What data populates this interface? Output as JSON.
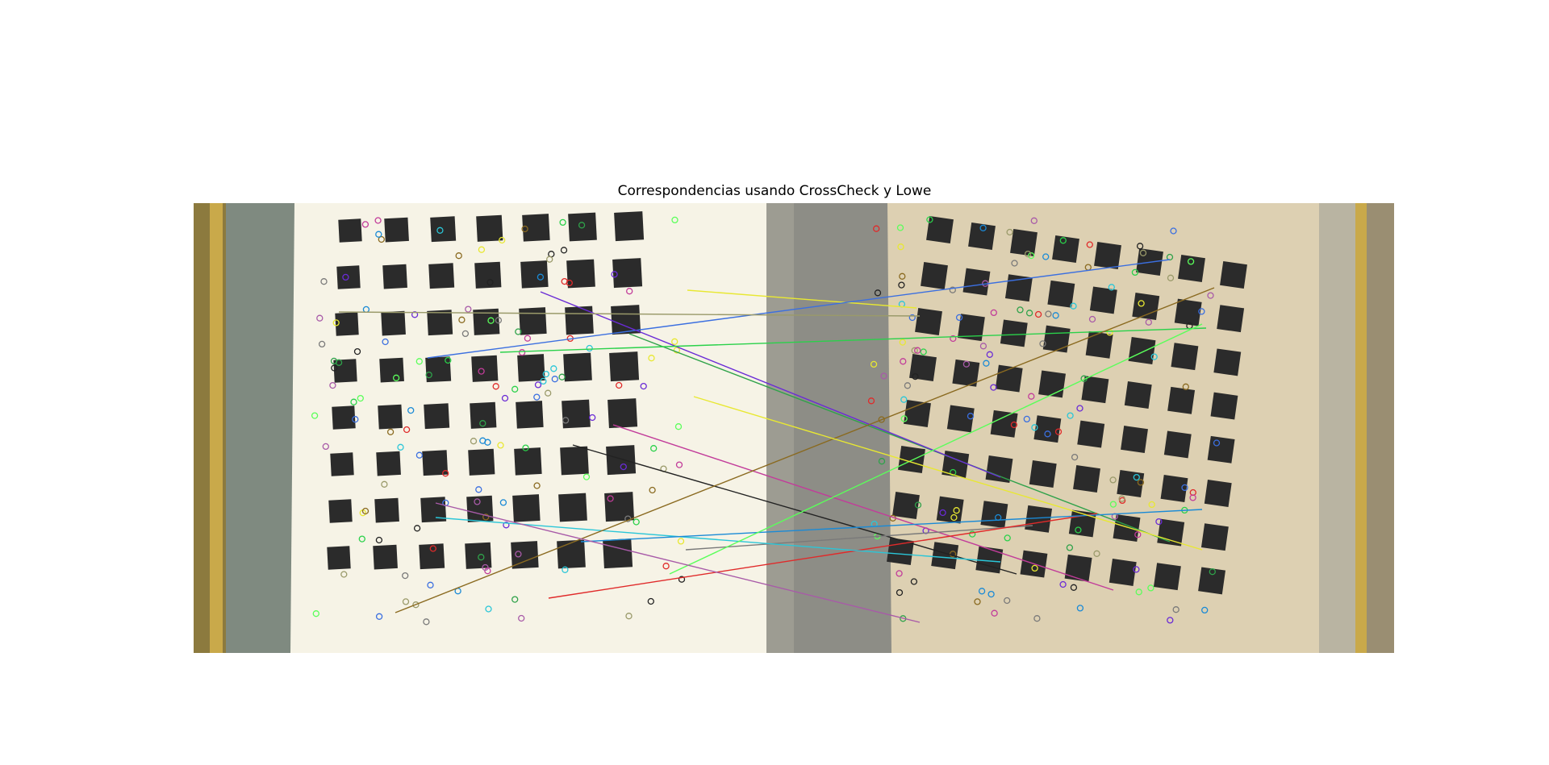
{
  "figure": {
    "title": "Correspondencias usando CrossCheck y Lowe"
  },
  "images": {
    "left": "calibration-checkerboard-photo-left",
    "right": "calibration-checkerboard-photo-right"
  },
  "colors": {
    "left_paper": "#f6f3e6",
    "right_paper": "#ddd0b2",
    "frame_gold": "#a08a40",
    "square": "#2b2b2b",
    "match_lines": [
      "#e8e832",
      "#3b6fe0",
      "#2fa24a",
      "#c23c9a",
      "#6a2bd6",
      "#2ad14a",
      "#222222",
      "#7a7a7a",
      "#e02a2a",
      "#2ac6d8",
      "#8a6a20",
      "#1a8ad6",
      "#5aff5a",
      "#a85aa8",
      "#9a9a6a"
    ]
  }
}
